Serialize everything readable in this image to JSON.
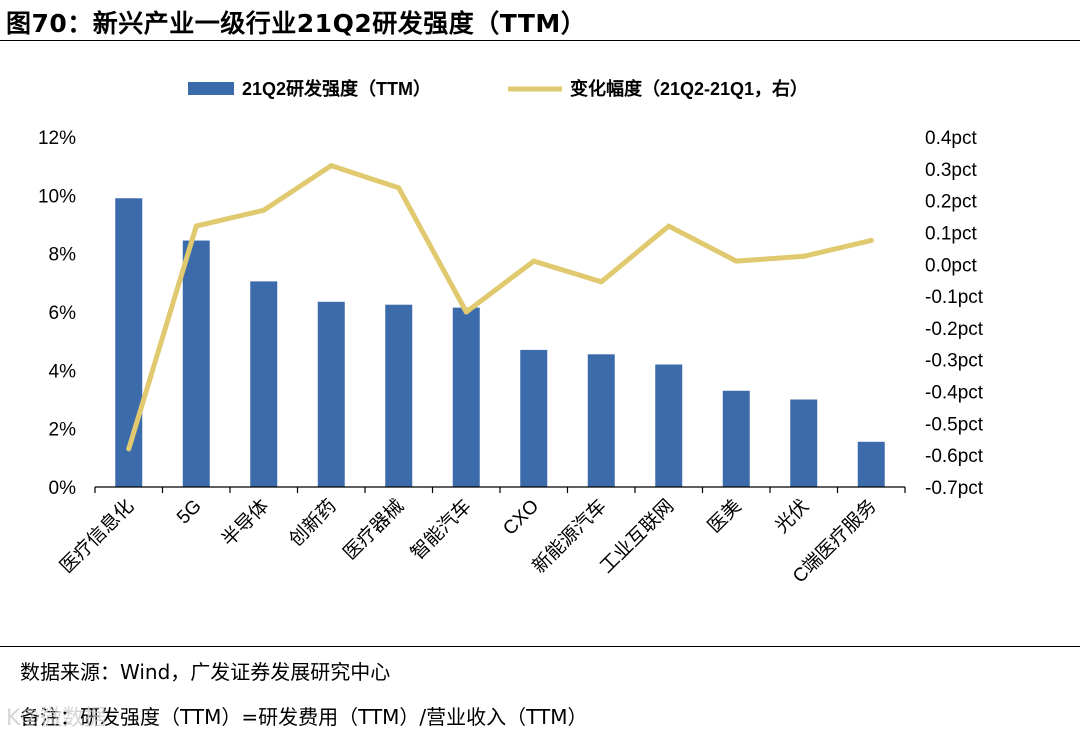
{
  "figure": {
    "title": "图70：新兴产业一级行业21Q2研发强度（TTM）",
    "source": "数据来源：Wind，广发证券发展研究中心",
    "remark": "备注：研发强度（TTM）=研发费用（TTM）/营业收入（TTM）",
    "watermark": "K②微数据"
  },
  "chart_data": {
    "type": "bar",
    "title": "新兴产业一级行业21Q2研发强度（TTM）",
    "categories": [
      "医疗信息化",
      "5G",
      "半导体",
      "创新药",
      "医疗器械",
      "智能汽车",
      "CXO",
      "新能源汽车",
      "工业互联网",
      "医美",
      "光伏",
      "C端医疗服务"
    ],
    "series": [
      {
        "name": "21Q2研发强度（TTM）",
        "type": "bar",
        "axis": "left",
        "color": "#3c6bab",
        "values": [
          9.9,
          8.45,
          7.05,
          6.35,
          6.25,
          6.15,
          4.7,
          4.55,
          4.2,
          3.3,
          3.0,
          1.55
        ]
      },
      {
        "name": "变化幅度（21Q2-21Q1，右）",
        "type": "line",
        "axis": "right",
        "color": "#e0c96e",
        "values": [
          -0.58,
          0.12,
          0.17,
          0.31,
          0.24,
          -0.15,
          0.01,
          -0.055,
          0.12,
          0.01,
          0.025,
          0.075
        ]
      }
    ],
    "left_axis": {
      "ylim": [
        0,
        12
      ],
      "ticks": [
        0,
        2,
        4,
        6,
        8,
        10,
        12
      ],
      "tick_labels": [
        "0%",
        "2%",
        "4%",
        "6%",
        "8%",
        "10%",
        "12%"
      ]
    },
    "right_axis": {
      "ylim": [
        -0.7,
        0.4
      ],
      "ticks": [
        0.4,
        0.3,
        0.2,
        0.1,
        0.0,
        -0.1,
        -0.2,
        -0.3,
        -0.4,
        -0.5,
        -0.6,
        -0.7
      ],
      "tick_labels": [
        "0.4pct",
        "0.3pct",
        "0.2pct",
        "0.1pct",
        "0.0pct",
        "-0.1pct",
        "-0.2pct",
        "-0.3pct",
        "-0.4pct",
        "-0.5pct",
        "-0.6pct",
        "-0.7pct"
      ]
    },
    "legend_position": "top-center",
    "grid": false
  }
}
